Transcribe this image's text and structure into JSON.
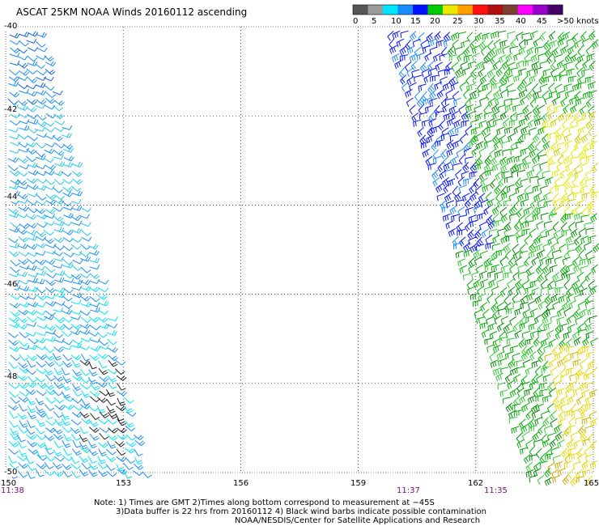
{
  "title": "ASCAT 25KM NOAA Winds 20160112 ascending",
  "colorbar": {
    "labels": [
      "0",
      "5",
      "10",
      "15",
      "20",
      "25",
      "30",
      "35",
      "40",
      "45",
      ">50 knots"
    ],
    "colors": [
      "#555555",
      "#9a9a9a",
      "#00e5ff",
      "#1a8cff",
      "#0011ff",
      "#00cc00",
      "#e8e800",
      "#ffa000",
      "#ff1010",
      "#b01010",
      "#7a4030",
      "#ff00ff",
      "#9900cc",
      "#440066"
    ]
  },
  "axes": {
    "x_ticks": [
      "150",
      "153",
      "156",
      "159",
      "162",
      "165"
    ],
    "y_ticks": [
      "-40",
      "-42",
      "-44",
      "-46",
      "-48",
      "-50"
    ],
    "grid": "dotted"
  },
  "pass_times": [
    {
      "label": "11:38",
      "lon": 150
    },
    {
      "label": "11:37",
      "lon": 160.2
    },
    {
      "label": "11:35",
      "lon": 162.5
    }
  ],
  "notes": {
    "line1": "Note: 1) Times are GMT 2)Times along bottom correspond to measurement at −45S",
    "line2": "3)Data buffer is 22 hrs from 20160112 4) Black wind barbs indicate possible contamination",
    "line3": "NOAA/NESDIS/Center for Satellite Applications and Research"
  },
  "swaths": [
    {
      "name": "west-swath",
      "description_speed": "10-15 knots"
    },
    {
      "name": "east-swath",
      "description_speed": "10-30 knots"
    }
  ]
}
